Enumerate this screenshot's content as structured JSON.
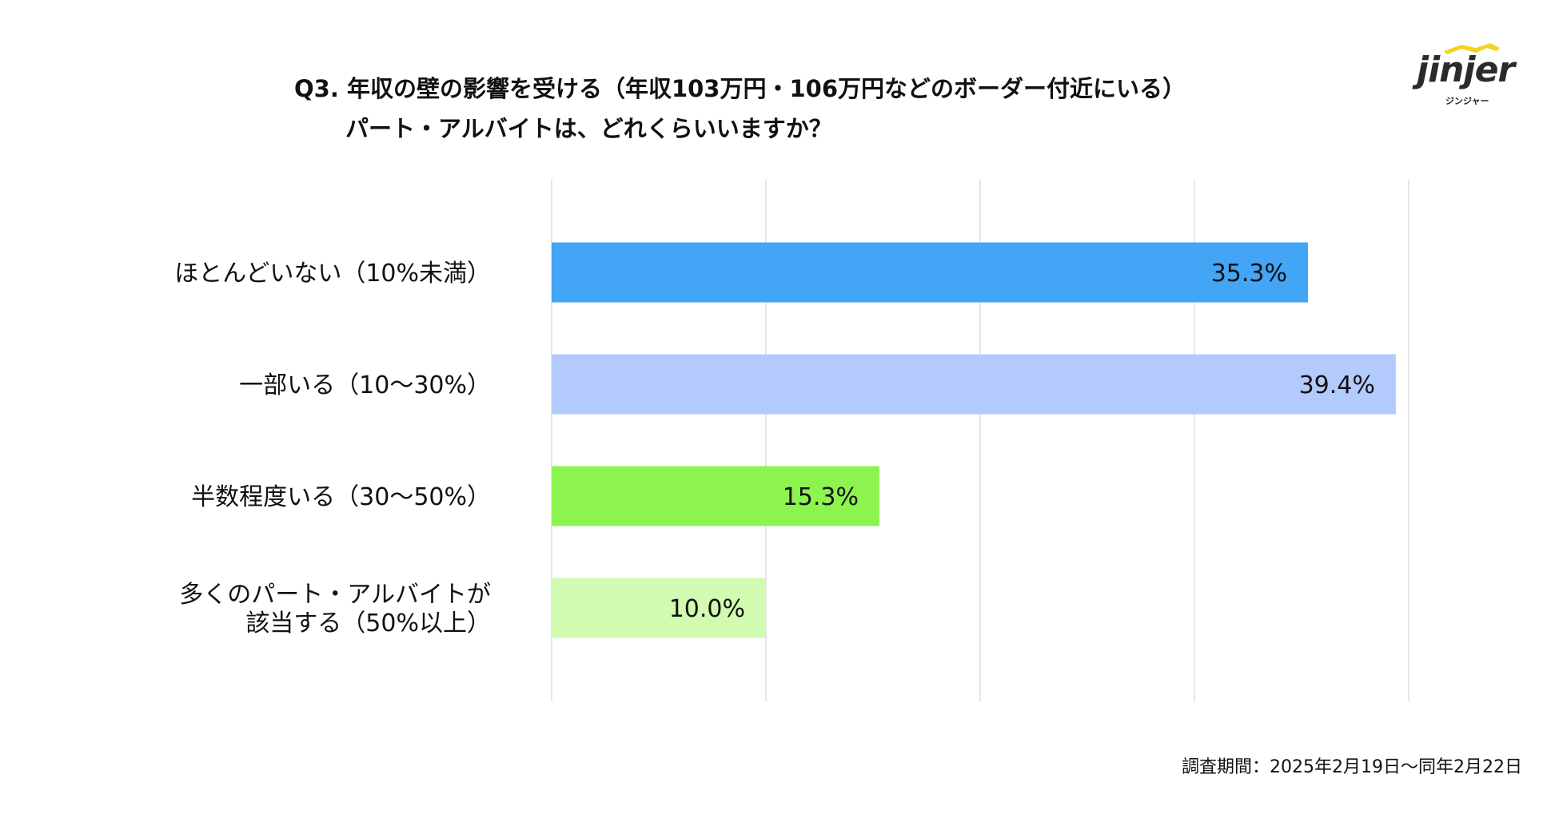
{
  "title": {
    "line1": "Q3. 年収の壁の影響を受ける（年収103万円・106万円などのボーダー付近にいる）",
    "line2": "パート・アルバイトは、どれくらいいますか？"
  },
  "logo": {
    "wordmark": "jinjer",
    "kana": "ジンジャー"
  },
  "footnote": "調査期間：2025年2月19日〜同年2月22日",
  "chart_data": {
    "type": "bar",
    "orientation": "horizontal",
    "categories": [
      [
        "ほとんどいない（10%未満）"
      ],
      [
        "一部いる（10〜30%）"
      ],
      [
        "半数程度いる（30〜50%）"
      ],
      [
        "多くのパート・アルバイトが",
        "該当する（50%以上）"
      ]
    ],
    "values": [
      35.3,
      39.4,
      15.3,
      10.0
    ],
    "data_labels": [
      "35.3%",
      "39.4%",
      "15.3%",
      "10.0%"
    ],
    "colors": [
      "#42a5f5",
      "#b3cbfc",
      "#8df34f",
      "#d0fbb0"
    ],
    "xlim": [
      0,
      40
    ],
    "grid": true,
    "legend": "none"
  }
}
